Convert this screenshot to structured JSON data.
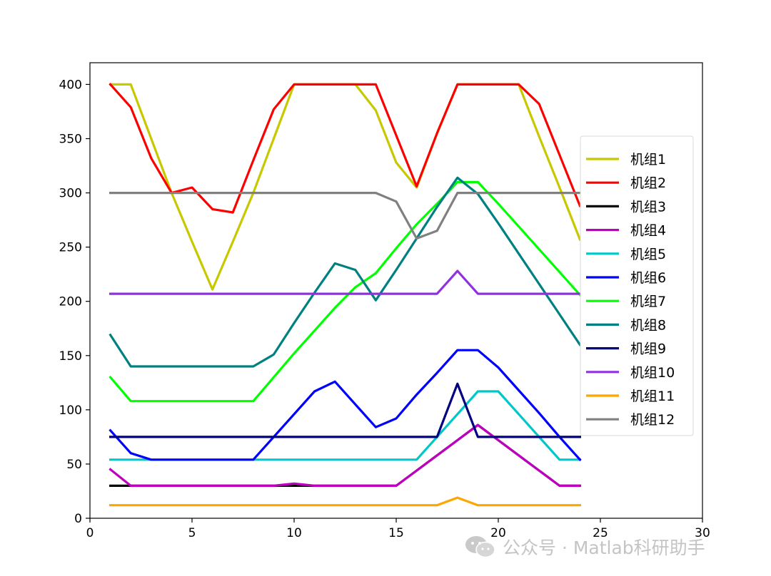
{
  "chart_data": {
    "type": "line",
    "title": "",
    "xlabel": "",
    "ylabel": "",
    "xlim": [
      0,
      30
    ],
    "ylim": [
      0,
      420
    ],
    "xticks": [
      0,
      5,
      10,
      15,
      20,
      25,
      30
    ],
    "yticks": [
      0,
      50,
      100,
      150,
      200,
      250,
      300,
      350,
      400
    ],
    "grid": false,
    "legend_position": "right",
    "x": [
      1,
      2,
      3,
      4,
      5,
      6,
      7,
      8,
      9,
      10,
      11,
      12,
      13,
      14,
      15,
      16,
      17,
      18,
      19,
      20,
      21,
      22,
      23,
      24
    ],
    "series": [
      {
        "name": "机组1",
        "color": "#c8c800",
        "values": [
          400,
          400,
          350,
          300,
          255,
          211,
          255,
          300,
          350,
          400,
          400,
          400,
          400,
          376,
          328,
          305,
          355,
          400,
          400,
          400,
          400,
          352,
          305,
          257
        ]
      },
      {
        "name": "机组2",
        "color": "#ff0000",
        "values": [
          400,
          379,
          332,
          300,
          305,
          285,
          282,
          330,
          377,
          400,
          400,
          400,
          400,
          400,
          353,
          306,
          355,
          400,
          400,
          400,
          400,
          382,
          335,
          288
        ]
      },
      {
        "name": "机组3",
        "color": "#000000",
        "values": [
          30,
          30,
          30,
          30,
          30,
          30,
          30,
          30,
          30,
          30,
          30,
          30,
          30,
          30,
          30,
          44,
          58,
          72,
          86,
          72,
          58,
          44,
          30,
          30
        ]
      },
      {
        "name": "机组4",
        "color": "#c000c0",
        "values": [
          45,
          30,
          30,
          30,
          30,
          30,
          30,
          30,
          30,
          32,
          30,
          30,
          30,
          30,
          30,
          44,
          58,
          72,
          86,
          72,
          58,
          44,
          30,
          30
        ]
      },
      {
        "name": "机组5",
        "color": "#00c8c8",
        "values": [
          54,
          54,
          54,
          54,
          54,
          54,
          54,
          54,
          54,
          54,
          54,
          54,
          54,
          54,
          54,
          54,
          75,
          96,
          117,
          117,
          96,
          75,
          54,
          54
        ]
      },
      {
        "name": "机组6",
        "color": "#0000ff",
        "values": [
          81,
          60,
          54,
          54,
          54,
          54,
          54,
          54,
          75,
          96,
          117,
          126,
          105,
          84,
          92,
          114,
          134,
          155,
          155,
          139,
          118,
          97,
          75,
          54
        ]
      },
      {
        "name": "机组7",
        "color": "#00ff00",
        "values": [
          130,
          108,
          108,
          108,
          108,
          108,
          108,
          108,
          130,
          152,
          173,
          194,
          213,
          226,
          249,
          271,
          290,
          310,
          310,
          290,
          269,
          248,
          227,
          206
        ]
      },
      {
        "name": "机组8",
        "color": "#008080",
        "values": [
          169,
          140,
          140,
          140,
          140,
          140,
          140,
          140,
          151,
          180,
          208,
          235,
          229,
          201,
          229,
          258,
          287,
          314,
          299,
          272,
          244,
          216,
          188,
          160
        ]
      },
      {
        "name": "机组9",
        "color": "#000080",
        "values": [
          75,
          75,
          75,
          75,
          75,
          75,
          75,
          75,
          75,
          75,
          75,
          75,
          75,
          75,
          75,
          75,
          75,
          124,
          75,
          75,
          75,
          75,
          75,
          75
        ]
      },
      {
        "name": "机组10",
        "color": "#9030e0",
        "values": [
          207,
          207,
          207,
          207,
          207,
          207,
          207,
          207,
          207,
          207,
          207,
          207,
          207,
          207,
          207,
          207,
          207,
          228,
          207,
          207,
          207,
          207,
          207,
          207
        ]
      },
      {
        "name": "机组11",
        "color": "#ffa500",
        "values": [
          12,
          12,
          12,
          12,
          12,
          12,
          12,
          12,
          12,
          12,
          12,
          12,
          12,
          12,
          12,
          12,
          12,
          19,
          12,
          12,
          12,
          12,
          12,
          12
        ]
      },
      {
        "name": "机组12",
        "color": "#808080",
        "values": [
          300,
          300,
          300,
          300,
          300,
          300,
          300,
          300,
          300,
          300,
          300,
          300,
          300,
          300,
          292,
          258,
          265,
          300,
          300,
          300,
          300,
          300,
          300,
          300
        ]
      }
    ]
  },
  "watermark": {
    "icon": "wechat-icon",
    "text": "公众号 · Matlab科研助手"
  }
}
